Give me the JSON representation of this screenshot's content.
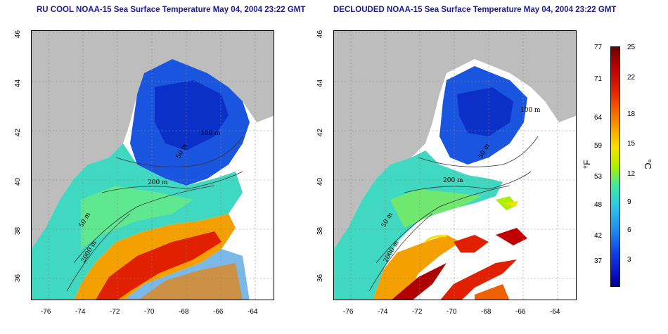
{
  "titles": {
    "left": "RU COOL NOAA-15 Sea Surface Temperature May 04, 2004 23:22 GMT",
    "right": "DECLOUDED NOAA-15 Sea Surface Temperature May 04, 2004 23:22 GMT"
  },
  "axes": {
    "lon_ticks": [
      "-76",
      "-74",
      "-72",
      "-70",
      "-68",
      "-66",
      "-64"
    ],
    "lat_ticks": [
      "46",
      "44",
      "42",
      "40",
      "38",
      "36"
    ]
  },
  "contours": {
    "left": [
      "100 m",
      "50 m",
      "200 m",
      "50 m",
      "2000 m"
    ],
    "right": [
      "100 m",
      "50 m",
      "200 m",
      "50 m",
      "2000 m"
    ]
  },
  "colorbar": {
    "fahrenheit_ticks": [
      "77",
      "71",
      "64",
      "59",
      "53",
      "48",
      "42",
      "37"
    ],
    "celsius_ticks": [
      "25",
      "22",
      "18",
      "15",
      "12",
      "9",
      "6",
      "3"
    ],
    "unit_f": "°F",
    "unit_c": "°C"
  },
  "colors": {
    "land": "#bdbdbd",
    "cold": "#1040e8",
    "warm": "#e02000",
    "title": "#1a1a9a"
  }
}
